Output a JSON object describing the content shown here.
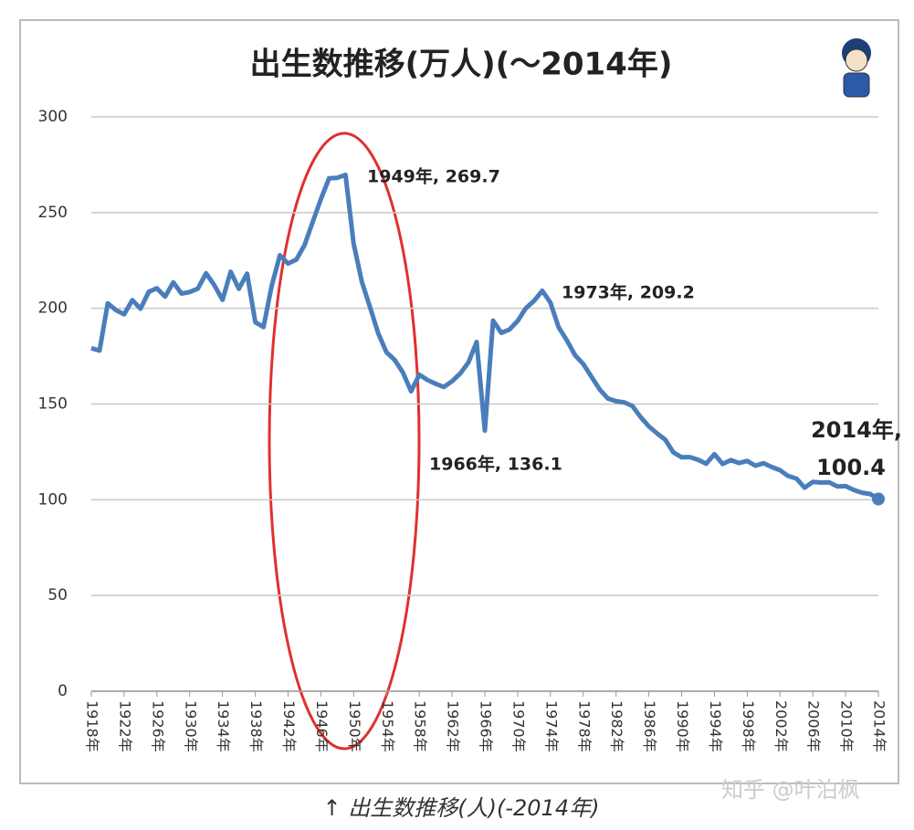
{
  "chart_data": {
    "type": "line",
    "title": "出生数推移(万人)(～2014年)",
    "caption": "↑ 出生数推移(人)(-2014年)",
    "watermark": "知乎 @叶泊枫",
    "x": [
      1918,
      1919,
      1920,
      1921,
      1922,
      1923,
      1924,
      1925,
      1926,
      1927,
      1928,
      1929,
      1930,
      1931,
      1932,
      1933,
      1934,
      1935,
      1936,
      1937,
      1938,
      1939,
      1940,
      1941,
      1942,
      1943,
      1944,
      1945,
      1946,
      1947,
      1948,
      1949,
      1950,
      1951,
      1952,
      1953,
      1954,
      1955,
      1956,
      1957,
      1958,
      1959,
      1960,
      1961,
      1962,
      1963,
      1964,
      1965,
      1966,
      1967,
      1968,
      1969,
      1970,
      1971,
      1972,
      1973,
      1974,
      1975,
      1976,
      1977,
      1978,
      1979,
      1980,
      1981,
      1982,
      1983,
      1984,
      1985,
      1986,
      1987,
      1988,
      1989,
      1990,
      1991,
      1992,
      1993,
      1994,
      1995,
      1996,
      1997,
      1998,
      1999,
      2000,
      2001,
      2002,
      2003,
      2004,
      2005,
      2006,
      2007,
      2008,
      2009,
      2010,
      2011,
      2012,
      2013,
      2014
    ],
    "series": [
      {
        "color": "#4a7ebb",
        "values": [
          179.2,
          177.9,
          202.6,
          199.1,
          196.9,
          204.3,
          199.8,
          208.6,
          210.5,
          206.1,
          213.6,
          207.7,
          208.5,
          210.3,
          218.3,
          212.1,
          204.4,
          219.1,
          210.2,
          218.1,
          192.8,
          190.2,
          211.6,
          227.7,
          223.4,
          225.4,
          233,
          245,
          257,
          267.9,
          268.2,
          269.7,
          233.8,
          213.8,
          200.5,
          186.8,
          177.0,
          173.1,
          166.5,
          156.7,
          165.3,
          162.6,
          160.6,
          158.9,
          161.9,
          166.0,
          171.7,
          182.4,
          136.1,
          193.6,
          187.2,
          188.9,
          193.4,
          200.1,
          203.9,
          209.2,
          203.0,
          190.1,
          183.3,
          175.5,
          170.9,
          164.3,
          157.7,
          152.9,
          151.5,
          150.9,
          149.0,
          143.2,
          138.3,
          134.7,
          131.4,
          124.7,
          122.2,
          122.3,
          120.9,
          118.8,
          123.8,
          118.7,
          120.7,
          119.2,
          120.3,
          117.8,
          119.1,
          117.1,
          115.4,
          112.4,
          111.1,
          106.3,
          109.3,
          109.0,
          109.1,
          107.0,
          107.1,
          105.1,
          103.7,
          103.0,
          100.4
        ]
      }
    ],
    "annotations": [
      "1949年, 269.7",
      "1973年, 209.2",
      "1966年, 136.1",
      "2014年,",
      "100.4"
    ],
    "xlim": [
      1918,
      2014
    ],
    "xticks": [
      {
        "value": 1918,
        "label": "1918年"
      },
      {
        "value": 1922,
        "label": "1922年"
      },
      {
        "value": 1926,
        "label": "1926年"
      },
      {
        "value": 1930,
        "label": "1930年"
      },
      {
        "value": 1934,
        "label": "1934年"
      },
      {
        "value": 1938,
        "label": "1938年"
      },
      {
        "value": 1942,
        "label": "1942年"
      },
      {
        "value": 1946,
        "label": "1946年"
      },
      {
        "value": 1950,
        "label": "1950年"
      },
      {
        "value": 1954,
        "label": "1954年"
      },
      {
        "value": 1958,
        "label": "1958年"
      },
      {
        "value": 1962,
        "label": "1962年"
      },
      {
        "value": 1966,
        "label": "1966年"
      },
      {
        "value": 1970,
        "label": "1970年"
      },
      {
        "value": 1974,
        "label": "1974年"
      },
      {
        "value": 1978,
        "label": "1978年"
      },
      {
        "value": 1982,
        "label": "1982年"
      },
      {
        "value": 1986,
        "label": "1986年"
      },
      {
        "value": 1990,
        "label": "1990年"
      },
      {
        "value": 1994,
        "label": "1994年"
      },
      {
        "value": 1998,
        "label": "1998年"
      },
      {
        "value": 2002,
        "label": "2002年"
      },
      {
        "value": 2006,
        "label": "2006年"
      },
      {
        "value": 2010,
        "label": "2010年"
      },
      {
        "value": 2014,
        "label": "2014年"
      }
    ],
    "ylim": [
      0,
      300
    ],
    "yticks": [
      0,
      50,
      100,
      150,
      200,
      250,
      300
    ],
    "grid": true
  }
}
